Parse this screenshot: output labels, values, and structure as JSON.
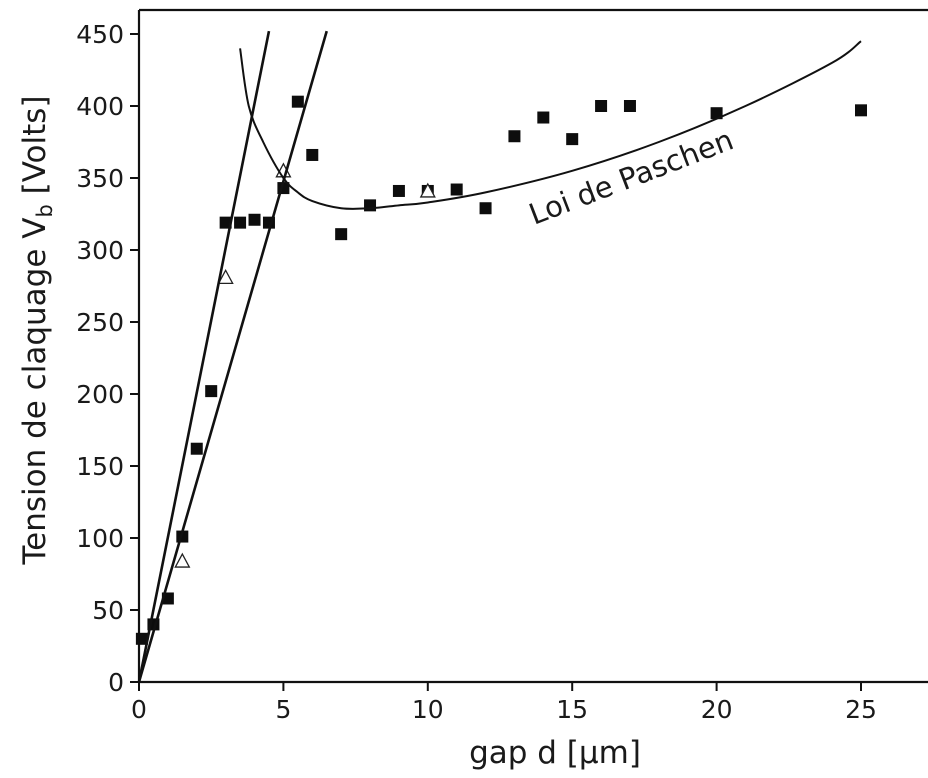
{
  "chart_data": {
    "type": "scatter",
    "xlabel": "gap d [µm]",
    "ylabel": "Tension de claquage V",
    "ylabel_subscript": "b",
    "ylabel_unit": " [Volts]",
    "xlim": [
      0,
      27.5
    ],
    "ylim": [
      0,
      450
    ],
    "xticks": [
      0,
      5,
      10,
      15,
      20,
      25
    ],
    "yticks": [
      0,
      50,
      100,
      150,
      200,
      250,
      300,
      350,
      400,
      450
    ],
    "grid": false,
    "annotation": "Loi de Paschen",
    "series": [
      {
        "marker": "filled-square",
        "x": [
          0.1,
          0.5,
          1.0,
          1.5,
          2.0,
          2.5,
          3.0,
          3.5,
          4.0,
          4.5,
          5.0,
          5.5,
          6.0,
          7.0,
          8.0,
          9.0,
          10.0,
          11.0,
          12.0,
          13.0,
          14.0,
          15.0,
          16.0,
          17.0,
          20.0,
          25.0
        ],
        "y": [
          30,
          40,
          58,
          101,
          162,
          202,
          319,
          319,
          321,
          319,
          343,
          403,
          366,
          311,
          331,
          341,
          341,
          342,
          329,
          379,
          392,
          377,
          400,
          400,
          395,
          397
        ]
      },
      {
        "marker": "open-triangle",
        "x": [
          1.5,
          3.0,
          5.0,
          10.0
        ],
        "y": [
          84,
          281,
          355,
          341
        ]
      },
      {
        "marker": "line",
        "x": [
          0,
          4.5
        ],
        "y": [
          0,
          452
        ]
      },
      {
        "marker": "line",
        "x": [
          0,
          6.5
        ],
        "y": [
          0,
          452
        ]
      },
      {
        "marker": "curve",
        "x": [
          3.5,
          3.8,
          4.3,
          5.0,
          5.5,
          6.0,
          7.0,
          8.0,
          9.0,
          10.0,
          12.0,
          15.0,
          18.0,
          21.0,
          24.0,
          25.0
        ],
        "y": [
          440,
          400,
          375,
          350,
          340,
          334,
          329,
          329,
          331,
          333,
          340,
          355,
          375,
          400,
          430,
          445
        ]
      }
    ]
  }
}
